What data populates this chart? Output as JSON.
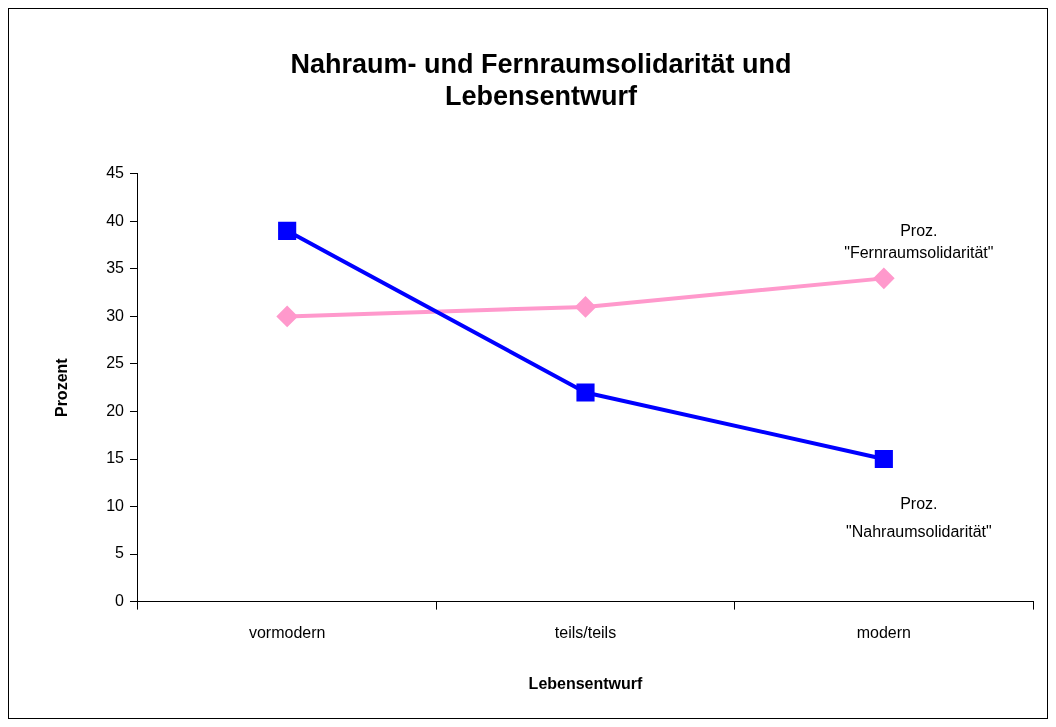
{
  "chart_data": {
    "type": "line",
    "title": "Nahraum- und Fernraumsolidarität und Lebensentwurf",
    "xlabel": "Lebensentwurf",
    "ylabel": "Prozent",
    "categories": [
      "vormodern",
      "teils/teils",
      "modern"
    ],
    "series": [
      {
        "name": "Proz. \"Nahraumsolidarität\"",
        "color": "#0000ff",
        "values": [
          39,
          22,
          15
        ],
        "marker": "square"
      },
      {
        "name": "Proz. \"Fernraumsolidarität\"",
        "color": "#ff99cc",
        "values": [
          30,
          31,
          34
        ],
        "marker": "diamond"
      }
    ],
    "ylim": [
      0,
      45
    ],
    "yticks": [
      0,
      5,
      10,
      15,
      20,
      25,
      30,
      35,
      40,
      45
    ],
    "grid": false,
    "legend": false,
    "line_style": "solid"
  }
}
